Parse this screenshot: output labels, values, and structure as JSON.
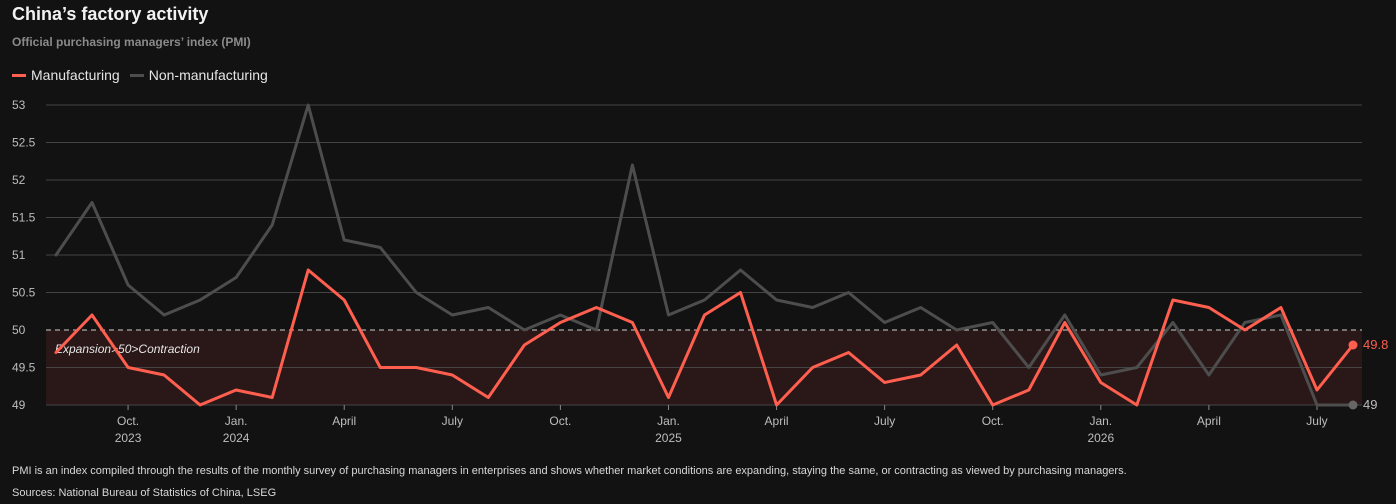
{
  "title": "China’s factory activity",
  "subtitle": "Official purchasing managers’ index (PMI)",
  "note": "PMI is an index compiled through the results of the monthly survey of purchasing managers in enterprises and shows whether market conditions are expanding, staying the same, or contracting as viewed by purchasing managers.",
  "source": "Sources: National Bureau of Statistics of China, LSEG",
  "colors": {
    "manufacturing": "#ff5f4f",
    "non_manufacturing": "#4d4d4d",
    "contraction_band": "#2a1717",
    "grid": "#444444",
    "background": "#121212"
  },
  "chart_data": {
    "type": "line",
    "ylim": [
      49,
      53
    ],
    "y_ticks": [
      "53",
      "52.5",
      "52",
      "51.5",
      "51",
      "50.5",
      "50",
      "49.5",
      "49"
    ],
    "x_tick_labels": [
      {
        "month_index": 2,
        "line1": "Oct.",
        "line2": "2023"
      },
      {
        "month_index": 5,
        "line1": "Jan.",
        "line2": "2024"
      },
      {
        "month_index": 8,
        "line1": "April",
        "line2": ""
      },
      {
        "month_index": 11,
        "line1": "July",
        "line2": ""
      },
      {
        "month_index": 14,
        "line1": "Oct.",
        "line2": ""
      },
      {
        "month_index": 17,
        "line1": "Jan.",
        "line2": "2025"
      },
      {
        "month_index": 20,
        "line1": "April",
        "line2": ""
      },
      {
        "month_index": 23,
        "line1": "July",
        "line2": ""
      },
      {
        "month_index": 26,
        "line1": "Oct.",
        "line2": ""
      },
      {
        "month_index": 29,
        "line1": "Jan.",
        "line2": "2026"
      },
      {
        "month_index": 32,
        "line1": "April",
        "line2": ""
      },
      {
        "month_index": 35,
        "line1": "July",
        "line2": ""
      }
    ],
    "x": [
      "2023-08",
      "2023-09",
      "2023-10",
      "2023-11",
      "2023-12",
      "2024-01",
      "2024-02",
      "2024-03",
      "2024-04",
      "2024-05",
      "2024-06",
      "2024-07",
      "2024-08",
      "2024-09",
      "2024-10",
      "2024-11",
      "2024-12",
      "2025-01",
      "2025-02",
      "2025-03",
      "2025-04",
      "2025-05",
      "2025-06",
      "2025-07",
      "2025-08",
      "2025-09",
      "2025-10",
      "2025-11",
      "2025-12",
      "2026-01",
      "2026-02",
      "2026-03",
      "2026-04",
      "2026-05",
      "2026-06",
      "2026-07",
      "2026-08"
    ],
    "threshold": 50,
    "threshold_label": "Expansion>50>Contraction",
    "series": [
      {
        "name": "Manufacturing",
        "color_key": "manufacturing",
        "values": [
          49.7,
          50.2,
          49.5,
          49.4,
          49.0,
          49.2,
          49.1,
          50.8,
          50.4,
          49.5,
          49.5,
          49.4,
          49.1,
          49.8,
          50.1,
          50.3,
          50.1,
          49.1,
          50.2,
          50.5,
          49.0,
          49.5,
          49.7,
          49.3,
          49.4,
          49.8,
          49.0,
          49.2,
          50.1,
          49.3,
          49.0,
          50.4,
          50.3,
          50.0,
          50.3,
          49.2,
          49.8
        ],
        "last_label": "49.8"
      },
      {
        "name": "Non-manufacturing",
        "color_key": "non_manufacturing",
        "values": [
          51.0,
          51.7,
          50.6,
          50.2,
          50.4,
          50.7,
          51.4,
          53.0,
          51.2,
          51.1,
          50.5,
          50.2,
          50.3,
          50.0,
          50.2,
          50.0,
          52.2,
          50.2,
          50.4,
          50.8,
          50.4,
          50.3,
          50.5,
          50.1,
          50.3,
          50.0,
          50.1,
          49.5,
          50.2,
          49.4,
          49.5,
          50.1,
          49.4,
          50.1,
          50.2,
          49.0,
          49.0
        ],
        "last_label": "49"
      }
    ]
  }
}
